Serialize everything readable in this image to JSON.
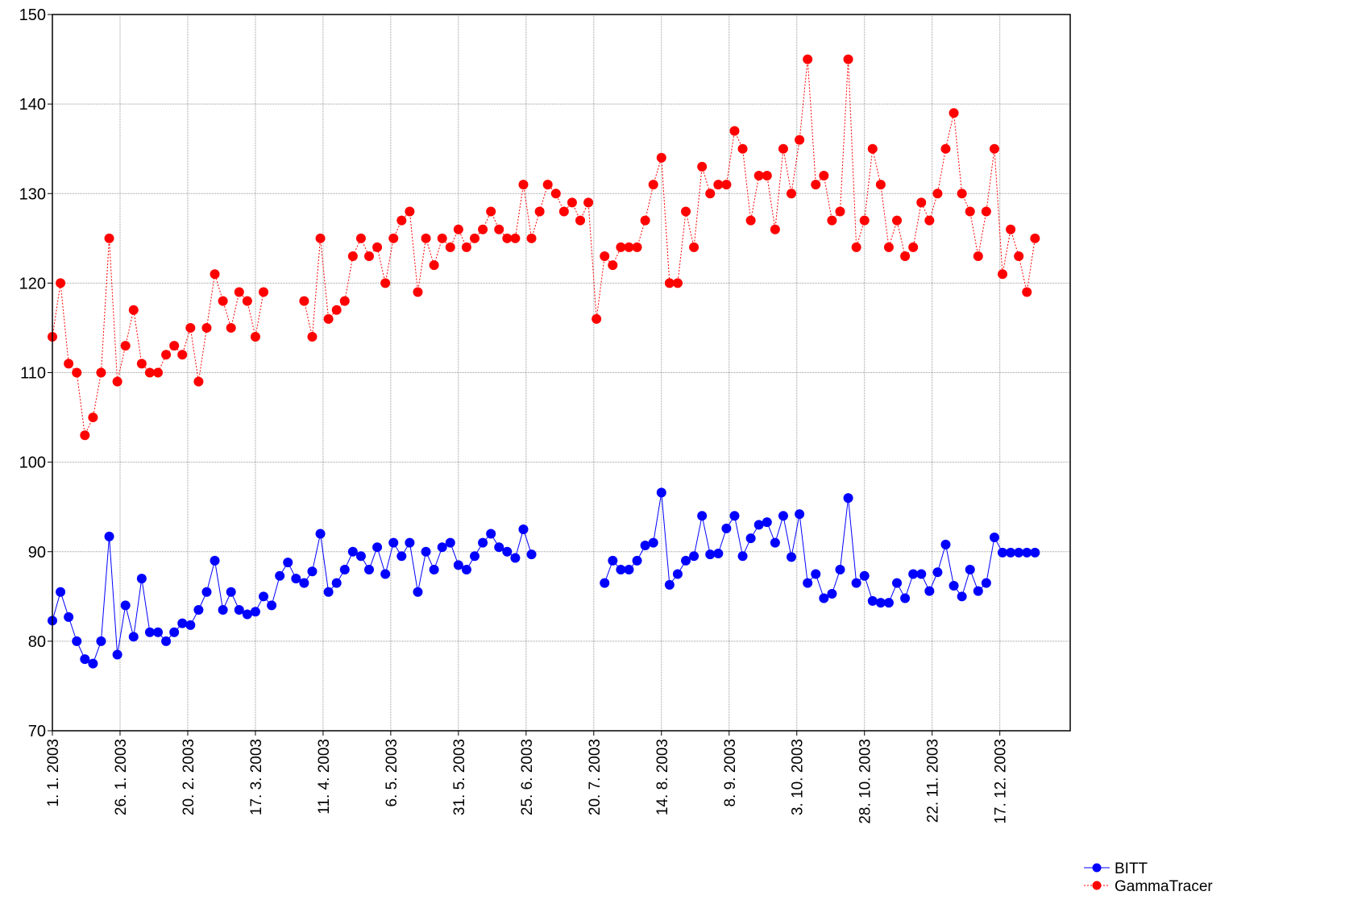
{
  "chart_data": {
    "type": "line",
    "x": [
      "2003-01-01",
      "2003-01-04",
      "2003-01-07",
      "2003-01-10",
      "2003-01-13",
      "2003-01-16",
      "2003-01-19",
      "2003-01-22",
      "2003-01-25",
      "2003-01-28",
      "2003-01-31",
      "2003-02-03",
      "2003-02-06",
      "2003-02-09",
      "2003-02-12",
      "2003-02-15",
      "2003-02-18",
      "2003-02-21",
      "2003-02-24",
      "2003-02-27",
      "2003-03-02",
      "2003-03-05",
      "2003-03-08",
      "2003-03-11",
      "2003-03-14",
      "2003-03-17",
      "2003-03-20",
      "2003-03-23",
      "2003-03-26",
      "2003-03-29",
      "2003-04-01",
      "2003-04-04",
      "2003-04-07",
      "2003-04-10",
      "2003-04-13",
      "2003-04-16",
      "2003-04-19",
      "2003-04-22",
      "2003-04-25",
      "2003-04-28",
      "2003-05-01",
      "2003-05-04",
      "2003-05-07",
      "2003-05-10",
      "2003-05-13",
      "2003-05-16",
      "2003-05-19",
      "2003-05-22",
      "2003-05-25",
      "2003-05-28",
      "2003-05-31",
      "2003-06-03",
      "2003-06-06",
      "2003-06-09",
      "2003-06-12",
      "2003-06-15",
      "2003-06-18",
      "2003-06-21",
      "2003-06-24",
      "2003-06-27",
      "2003-06-30",
      "2003-07-03",
      "2003-07-06",
      "2003-07-09",
      "2003-07-12",
      "2003-07-15",
      "2003-07-18",
      "2003-07-21",
      "2003-07-24",
      "2003-07-27",
      "2003-07-30",
      "2003-08-02",
      "2003-08-05",
      "2003-08-08",
      "2003-08-11",
      "2003-08-14",
      "2003-08-17",
      "2003-08-20",
      "2003-08-23",
      "2003-08-26",
      "2003-08-29",
      "2003-09-01",
      "2003-09-04",
      "2003-09-07",
      "2003-09-10",
      "2003-09-13",
      "2003-09-16",
      "2003-09-19",
      "2003-09-22",
      "2003-09-25",
      "2003-09-28",
      "2003-10-01",
      "2003-10-04",
      "2003-10-07",
      "2003-10-10",
      "2003-10-13",
      "2003-10-16",
      "2003-10-19",
      "2003-10-22",
      "2003-10-25",
      "2003-10-28",
      "2003-10-31",
      "2003-11-03",
      "2003-11-06",
      "2003-11-09",
      "2003-11-12",
      "2003-11-15",
      "2003-11-18",
      "2003-11-21",
      "2003-11-24",
      "2003-11-27",
      "2003-11-30",
      "2003-12-03",
      "2003-12-06",
      "2003-12-09",
      "2003-12-12",
      "2003-12-15",
      "2003-12-18",
      "2003-12-21",
      "2003-12-24",
      "2003-12-27",
      "2003-12-30"
    ],
    "series": [
      {
        "name": "BITT",
        "color": "#0000ff",
        "dash": false,
        "values": [
          82.3,
          85.5,
          82.7,
          80,
          78,
          77.5,
          80,
          91.7,
          78.5,
          84,
          80.5,
          87,
          81,
          81,
          80,
          81,
          82,
          81.8,
          83.5,
          85.5,
          89,
          83.5,
          85.5,
          83.5,
          83,
          83.3,
          85,
          84,
          87.3,
          88.8,
          87,
          86.5,
          87.8,
          92,
          85.5,
          86.5,
          88,
          90,
          89.5,
          88,
          90.5,
          87.5,
          91,
          89.5,
          91,
          85.5,
          90,
          88,
          90.5,
          91,
          88.5,
          88,
          89.5,
          91,
          92,
          90.5,
          90,
          89.3,
          92.5,
          89.7,
          null,
          null,
          null,
          null,
          null,
          null,
          null,
          null,
          86.5,
          89,
          88,
          88,
          89,
          90.7,
          91,
          96.6,
          86.3,
          87.5,
          89,
          89.5,
          94,
          89.7,
          89.8,
          92.6,
          94,
          89.5,
          91.5,
          93,
          93.3,
          91,
          94,
          89.4,
          94.2,
          86.5,
          87.5,
          84.8,
          85.3,
          88,
          96,
          86.5,
          87.3,
          84.5,
          84.3,
          84.3,
          86.5,
          84.8,
          87.5,
          87.5,
          85.6,
          87.7,
          90.8,
          86.2,
          85,
          88,
          85.6,
          86.5,
          91.6,
          89.9,
          89.9,
          89.9,
          89.9,
          89.9
        ]
      },
      {
        "name": "GammaTracer",
        "color": "#ff0000",
        "dash": true,
        "values": [
          114,
          120,
          111,
          110,
          103,
          105,
          110,
          125,
          109,
          113,
          117,
          111,
          110,
          110,
          112,
          113,
          112,
          115,
          109,
          115,
          121,
          118,
          115,
          119,
          118,
          114,
          119,
          null,
          null,
          null,
          null,
          118,
          114,
          125,
          116,
          117,
          118,
          123,
          125,
          123,
          124,
          120,
          125,
          127,
          128,
          119,
          125,
          122,
          125,
          124,
          126,
          124,
          125,
          126,
          128,
          126,
          125,
          125,
          131,
          125,
          128,
          131,
          130,
          128,
          129,
          127,
          129,
          116,
          123,
          122,
          124,
          124,
          124,
          127,
          131,
          134,
          120,
          120,
          128,
          124,
          133,
          130,
          131,
          131,
          137,
          135,
          127,
          132,
          132,
          126,
          135,
          130,
          136,
          145,
          131,
          132,
          127,
          128,
          145,
          124,
          127,
          135,
          131,
          124,
          127,
          123,
          124,
          129,
          127,
          130,
          135,
          139,
          130,
          128,
          123,
          128,
          135,
          121,
          126,
          123,
          119,
          125
        ]
      }
    ],
    "xlim": [
      "2003-01-01",
      "2004-01-12"
    ],
    "xticks": [
      {
        "value": "2003-01-01",
        "label": "1. 1. 2003"
      },
      {
        "value": "2003-01-26",
        "label": "26. 1. 2003"
      },
      {
        "value": "2003-02-20",
        "label": "20. 2. 2003"
      },
      {
        "value": "2003-03-17",
        "label": "17. 3. 2003"
      },
      {
        "value": "2003-04-11",
        "label": "11. 4. 2003"
      },
      {
        "value": "2003-05-06",
        "label": "6. 5. 2003"
      },
      {
        "value": "2003-05-31",
        "label": "31. 5. 2003"
      },
      {
        "value": "2003-06-25",
        "label": "25. 6. 2003"
      },
      {
        "value": "2003-07-20",
        "label": "20. 7. 2003"
      },
      {
        "value": "2003-08-14",
        "label": "14. 8. 2003"
      },
      {
        "value": "2003-09-08",
        "label": "8. 9. 2003"
      },
      {
        "value": "2003-10-03",
        "label": "3. 10. 2003"
      },
      {
        "value": "2003-10-28",
        "label": "28. 10. 2003"
      },
      {
        "value": "2003-11-22",
        "label": "22. 11. 2003"
      },
      {
        "value": "2003-12-17",
        "label": "17. 12. 2003"
      }
    ],
    "ylim": [
      70,
      150
    ],
    "yticks": [
      70,
      80,
      90,
      100,
      110,
      120,
      130,
      140,
      150
    ],
    "grid": true,
    "legend": "bottom-right"
  }
}
